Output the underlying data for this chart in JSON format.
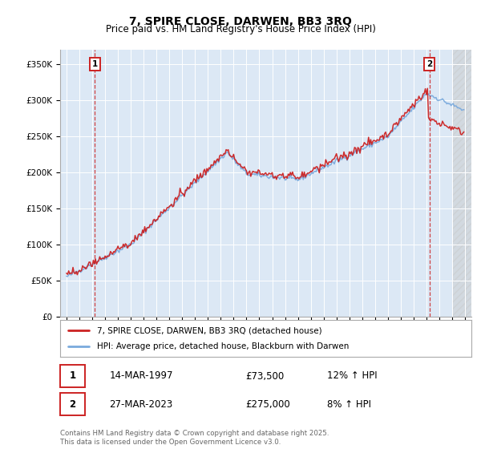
{
  "title": "7, SPIRE CLOSE, DARWEN, BB3 3RQ",
  "subtitle": "Price paid vs. HM Land Registry's House Price Index (HPI)",
  "legend_line1": "7, SPIRE CLOSE, DARWEN, BB3 3RQ (detached house)",
  "legend_line2": "HPI: Average price, detached house, Blackburn with Darwen",
  "annotation1_date": "14-MAR-1997",
  "annotation1_price": "£73,500",
  "annotation1_hpi": "12% ↑ HPI",
  "annotation2_date": "27-MAR-2023",
  "annotation2_price": "£275,000",
  "annotation2_hpi": "8% ↑ HPI",
  "footer": "Contains HM Land Registry data © Crown copyright and database right 2025.\nThis data is licensed under the Open Government Licence v3.0.",
  "red_color": "#cc2222",
  "blue_color": "#7aaadd",
  "plot_bg": "#dce8f5",
  "ylim": [
    0,
    370000
  ],
  "yticks": [
    0,
    50000,
    100000,
    150000,
    200000,
    250000,
    300000,
    350000
  ],
  "xmin": 1994.5,
  "xmax": 2026.5,
  "purchase1_year": 1997.21,
  "purchase2_year": 2023.24,
  "hatch_start": 2025.0
}
